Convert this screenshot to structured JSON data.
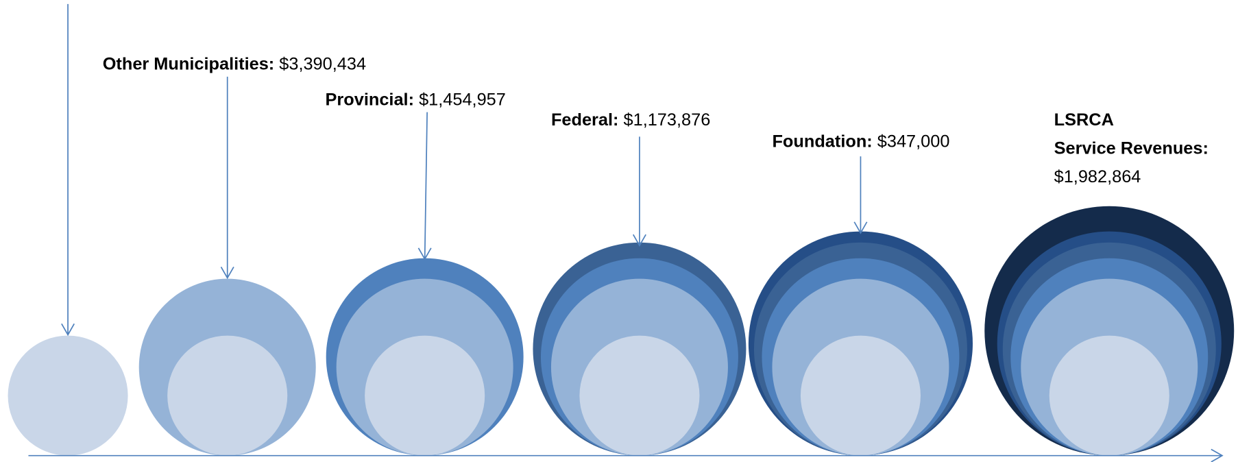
{
  "labels": [
    {
      "name": "Other Municipalities:",
      "amount": "$3,390,434"
    },
    {
      "name": "Provincial:",
      "amount": "$1,454,957"
    },
    {
      "name": "Federal:",
      "amount": "$1,173,876"
    },
    {
      "name": "Foundation:",
      "amount": "$347,000"
    },
    {
      "name_lines": [
        "LSRCA",
        "Service Revenues:"
      ],
      "amount": "$1,982,864"
    }
  ]
}
